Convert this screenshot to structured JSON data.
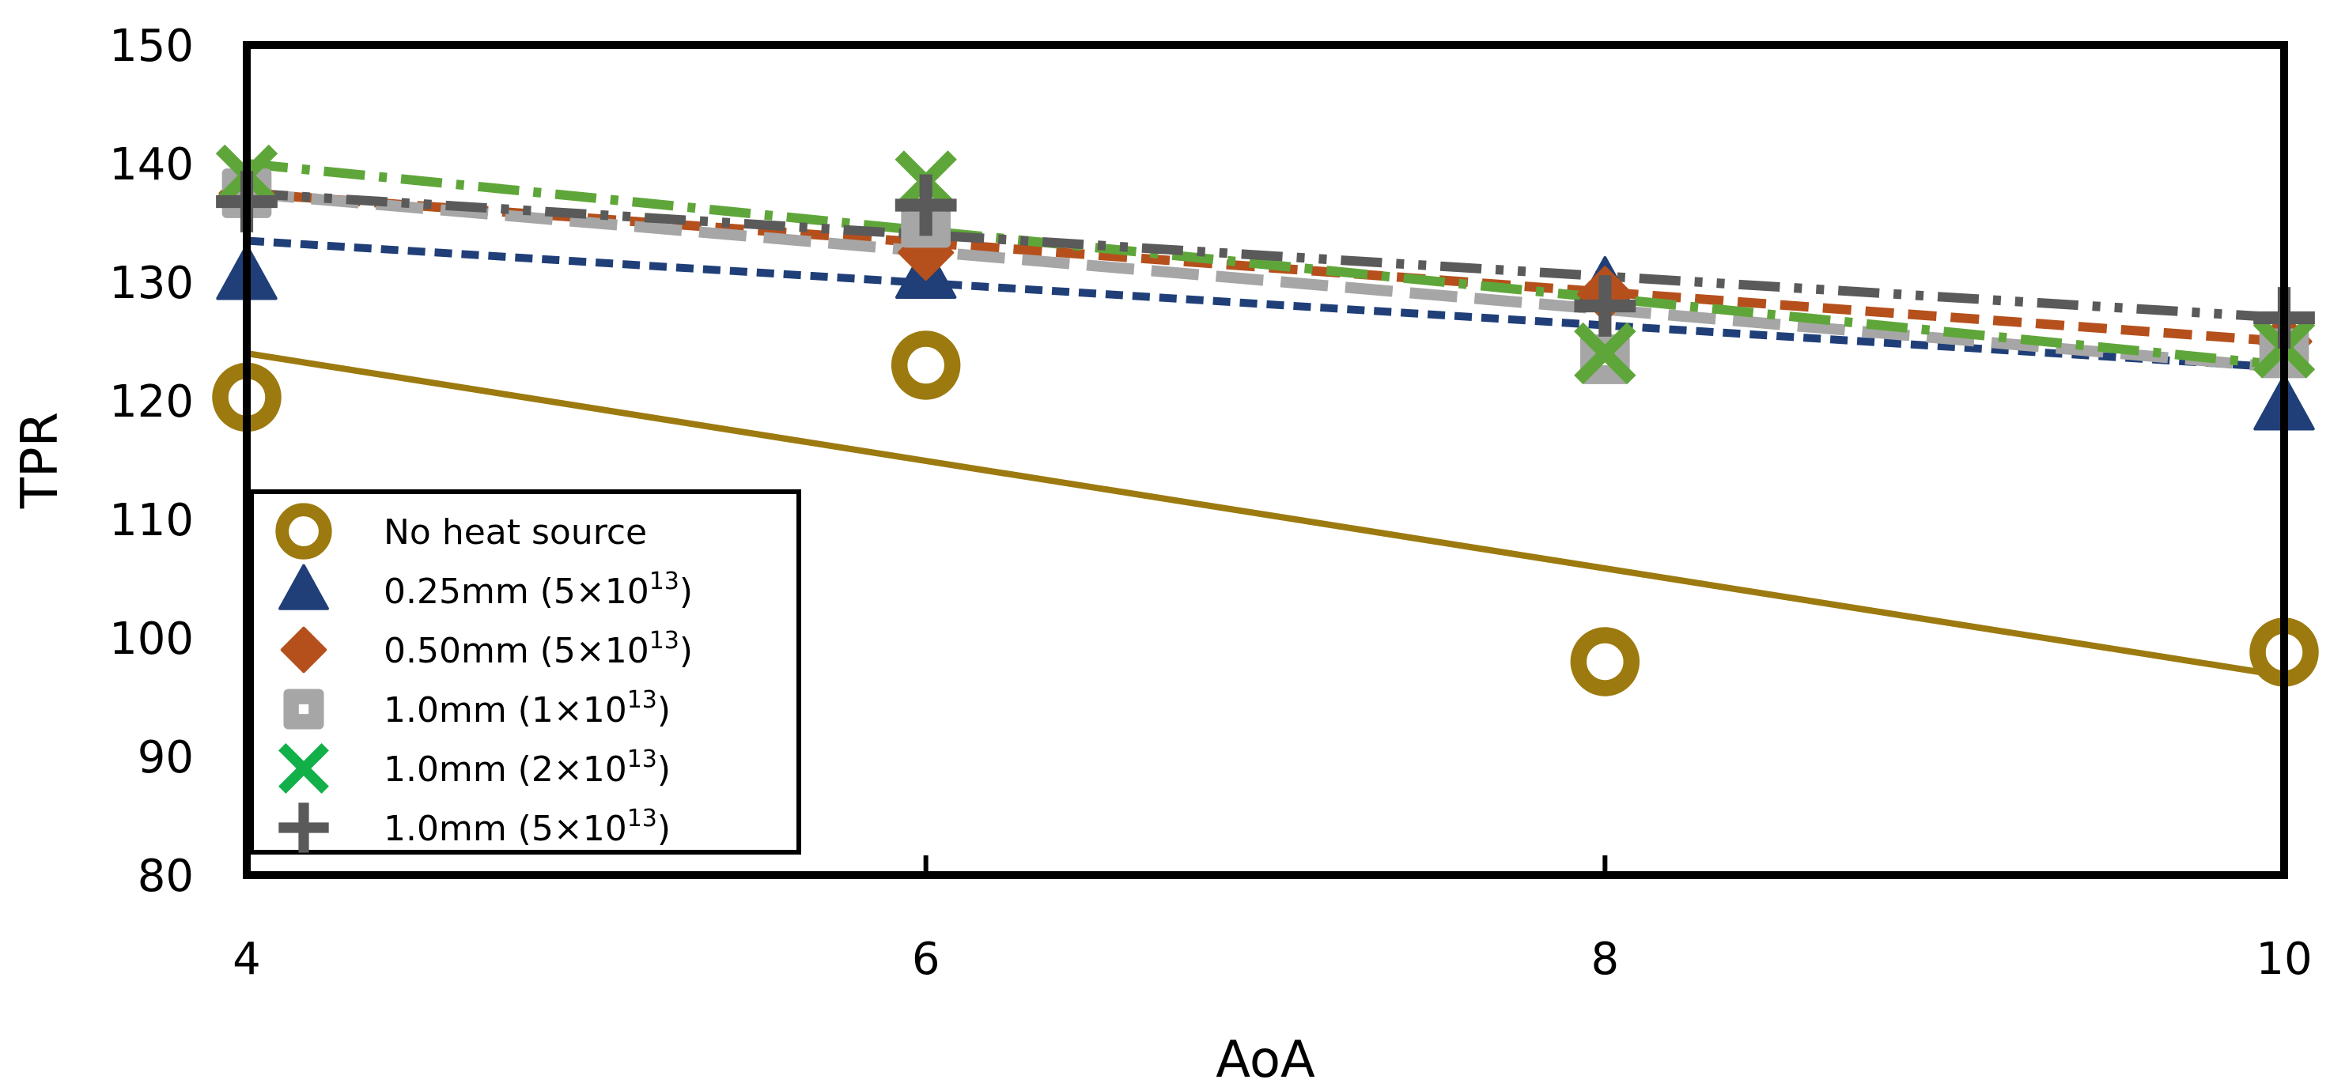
{
  "chart_data": {
    "type": "scatter",
    "title": "",
    "xlabel": "AoA",
    "ylabel": "TPR",
    "xlim": [
      4,
      10
    ],
    "ylim": [
      80,
      150
    ],
    "xticks": [
      "4",
      "6",
      "8",
      "10"
    ],
    "yticks": [
      "80",
      "90",
      "100",
      "110",
      "120",
      "130",
      "140",
      "150"
    ],
    "legend_position": "bottom-left",
    "x": [
      4,
      6,
      8,
      10
    ],
    "series": [
      {
        "key": "nohs",
        "name": "No heat source",
        "marker": "circle",
        "color": "#9c7a0f",
        "line_style": "solid",
        "values": [
          120.3,
          123.0,
          98.0,
          98.8
        ],
        "trend": [
          124.0,
          96.8
        ]
      },
      {
        "key": "s025",
        "name": "0.25mm (5×10^13)",
        "legend_prefix": "0.25mm (5×10",
        "legend_exp": "13",
        "legend_suffix": ")",
        "marker": "triangle",
        "color": "#203f78",
        "line_style": "dashed",
        "values": [
          130.5,
          130.6,
          129.5,
          119.5
        ],
        "trend": [
          133.5,
          122.8
        ]
      },
      {
        "key": "s050",
        "name": "0.50mm (5×10^13)",
        "legend_prefix": "0.50mm (5×10",
        "legend_exp": "13",
        "legend_suffix": ")",
        "marker": "diamond",
        "color": "#b5501c",
        "line_style": "dash",
        "values": [
          137.5,
          132.5,
          129.0,
          125.0
        ],
        "trend": [
          137.5,
          125.0
        ]
      },
      {
        "key": "s10a",
        "name": "1.0mm (1×10^13)",
        "legend_prefix": "1.0mm (1×10",
        "legend_exp": "13",
        "legend_suffix": ")",
        "marker": "square",
        "color": "#a6a6a6",
        "line_style": "longdash",
        "values": [
          137.5,
          135.0,
          123.5,
          124.0
        ],
        "trend": [
          137.5,
          122.8
        ]
      },
      {
        "key": "s10b",
        "name": "1.0mm (2×10^13)",
        "legend_prefix": "1.0mm (2×10",
        "legend_exp": "13",
        "legend_suffix": ")",
        "marker": "x",
        "color": "#5fa63a",
        "legend_color": "#12b049",
        "line_style": "dashdot",
        "values": [
          139.0,
          138.5,
          124.0,
          124.5
        ],
        "trend": [
          140.0,
          123.0
        ]
      },
      {
        "key": "s10c",
        "name": "1.0mm (5×10^13)",
        "legend_prefix": "1.0mm (5×10",
        "legend_exp": "13",
        "legend_suffix": ")",
        "marker": "plus",
        "color": "#5a5a5a",
        "line_style": "dashdotdot",
        "values": [
          136.8,
          136.5,
          128.0,
          127.0
        ],
        "trend": [
          137.5,
          127.0
        ]
      }
    ]
  }
}
